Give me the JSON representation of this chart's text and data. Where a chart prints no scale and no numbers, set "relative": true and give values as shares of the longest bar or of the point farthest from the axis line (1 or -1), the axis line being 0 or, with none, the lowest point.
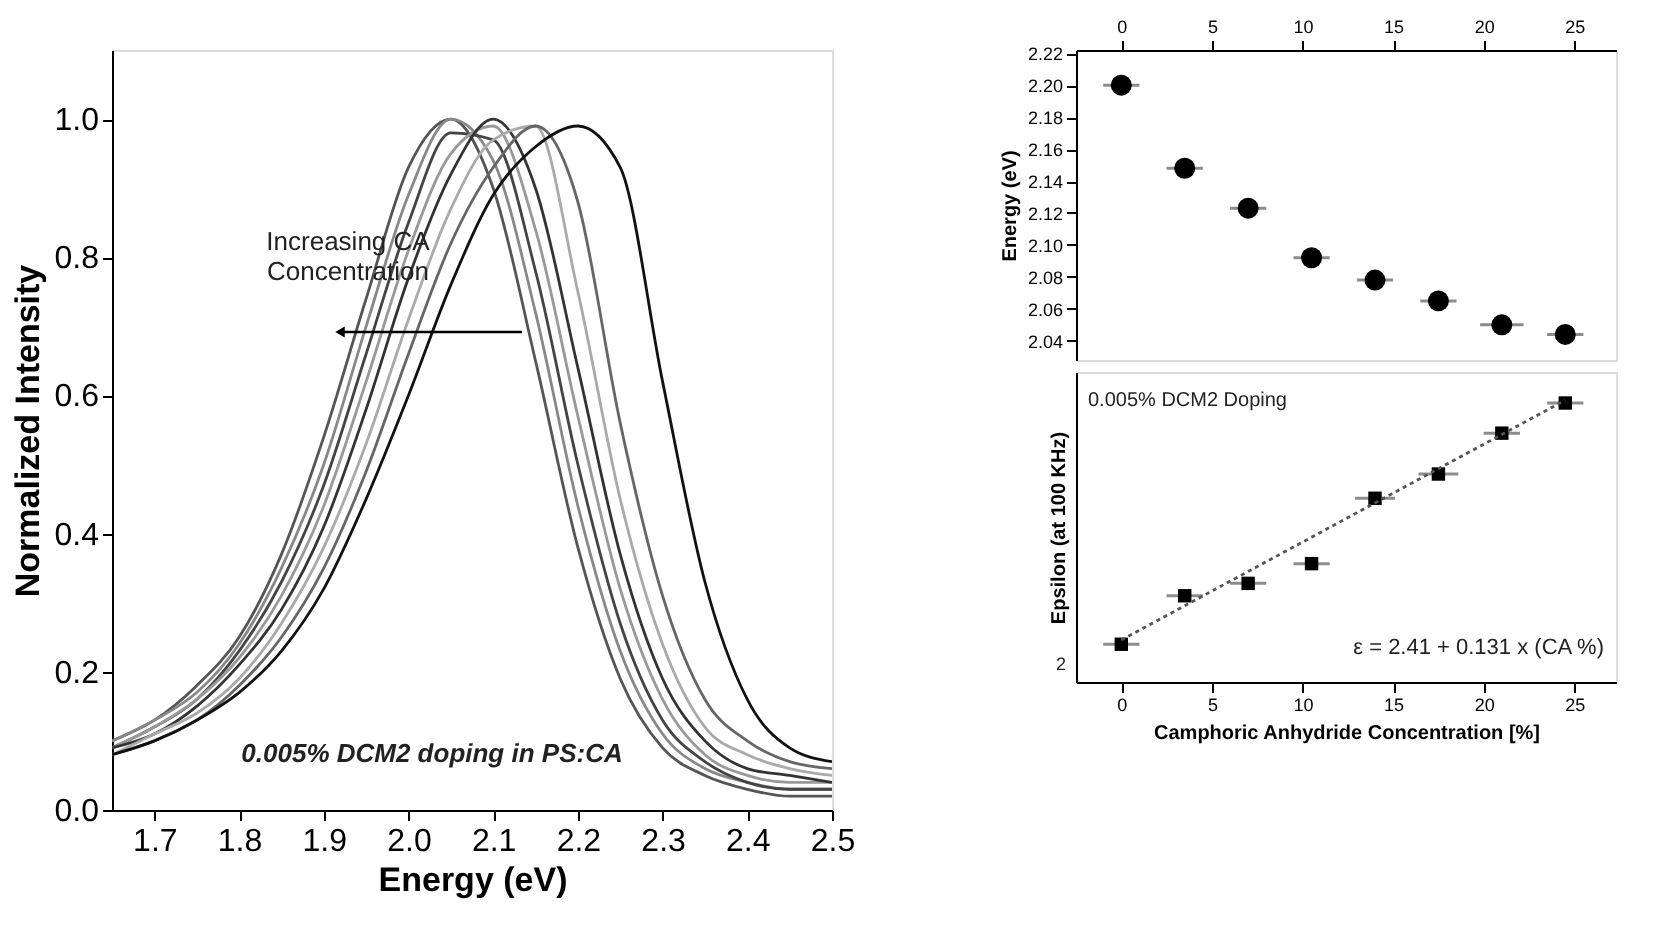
{
  "chart_data": [
    {
      "type": "line",
      "xlabel": "Energy (eV)",
      "ylabel": "Normalized Intensity",
      "x": [
        1.65,
        1.7,
        1.75,
        1.8,
        1.85,
        1.9,
        1.95,
        2.0,
        2.05,
        2.1,
        2.15,
        2.2,
        2.25,
        2.3,
        2.35,
        2.4,
        2.45,
        2.5
      ],
      "xlim": [
        1.65,
        2.5
      ],
      "xticks": [
        1.7,
        1.8,
        1.9,
        {
          "value": 2.0,
          "label": "2.0"
        },
        2.1,
        2.2,
        2.3,
        2.4,
        2.5
      ],
      "ylim": [
        0,
        1.1
      ],
      "yticks": [
        {
          "value": 0,
          "label": "0.0"
        },
        0.2,
        0.4,
        0.6,
        0.8,
        {
          "value": 1,
          "label": "1.0"
        }
      ],
      "series": [
        {
          "color": "#555555",
          "values": [
            0.1,
            0.13,
            0.18,
            0.25,
            0.37,
            0.54,
            0.74,
            0.93,
            1.0,
            0.9,
            0.65,
            0.38,
            0.19,
            0.09,
            0.05,
            0.03,
            0.02,
            0.02
          ]
        },
        {
          "color": "#888888",
          "values": [
            0.1,
            0.13,
            0.17,
            0.24,
            0.35,
            0.5,
            0.7,
            0.89,
            1.0,
            0.94,
            0.72,
            0.44,
            0.23,
            0.11,
            0.06,
            0.04,
            0.03,
            0.03
          ]
        },
        {
          "color": "#444444",
          "values": [
            0.09,
            0.12,
            0.16,
            0.23,
            0.33,
            0.47,
            0.66,
            0.85,
            0.98,
            0.97,
            0.78,
            0.5,
            0.27,
            0.13,
            0.07,
            0.04,
            0.03,
            0.03
          ]
        },
        {
          "color": "#999999",
          "values": [
            0.09,
            0.12,
            0.16,
            0.22,
            0.31,
            0.44,
            0.62,
            0.81,
            0.95,
            0.99,
            0.84,
            0.57,
            0.32,
            0.16,
            0.08,
            0.05,
            0.04,
            0.04
          ]
        },
        {
          "color": "#333333",
          "values": [
            0.09,
            0.11,
            0.15,
            0.21,
            0.29,
            0.41,
            0.58,
            0.77,
            0.92,
            1.0,
            0.9,
            0.64,
            0.37,
            0.19,
            0.1,
            0.06,
            0.05,
            0.04
          ]
        },
        {
          "color": "#aaaaaa",
          "values": [
            0.08,
            0.11,
            0.14,
            0.19,
            0.27,
            0.38,
            0.53,
            0.71,
            0.87,
            0.97,
            0.99,
            0.75,
            0.45,
            0.24,
            0.12,
            0.08,
            0.06,
            0.05
          ]
        },
        {
          "color": "#666666",
          "values": [
            0.08,
            0.1,
            0.13,
            0.18,
            0.25,
            0.35,
            0.49,
            0.66,
            0.82,
            0.93,
            0.99,
            0.88,
            0.56,
            0.31,
            0.16,
            0.1,
            0.07,
            0.06
          ]
        },
        {
          "color": "#111111",
          "values": [
            0.08,
            0.1,
            0.13,
            0.17,
            0.23,
            0.32,
            0.45,
            0.6,
            0.76,
            0.89,
            0.96,
            0.99,
            0.93,
            0.62,
            0.33,
            0.16,
            0.09,
            0.07
          ]
        }
      ],
      "annotations": [
        "Increasing CA Concentration",
        "0.005% DCM2 doping in PS:CA"
      ]
    },
    {
      "type": "scatter",
      "ylabel": "Energy (eV)",
      "marker": "circle",
      "x": [
        0,
        3.5,
        7,
        10.5,
        14,
        17.5,
        21,
        24.5
      ],
      "x2lim": [
        -2.5,
        27.3
      ],
      "x2ticks": [
        0,
        5,
        10,
        15,
        20,
        25
      ],
      "ylim": [
        2.028,
        2.222
      ],
      "yticks": [
        2.04,
        2.06,
        2.08,
        {
          "value": 2.1,
          "label": "2.10"
        },
        2.12,
        2.14,
        2.16,
        2.18,
        {
          "value": 2.2,
          "label": "2.20"
        },
        2.22
      ],
      "series": [
        {
          "color": "#000000",
          "axis": "x2",
          "values": [
            2.2,
            2.148,
            2.123,
            2.092,
            2.078,
            2.065,
            2.05,
            2.044
          ],
          "xerrors": [
            1,
            1,
            1,
            1,
            1,
            1,
            1.2,
            1
          ]
        }
      ]
    },
    {
      "type": "scatter",
      "relative": true,
      "xlabel": "Camphoric Anhydride Concentration [%]",
      "ylabel": "Epsilon (at 100 KHz)",
      "x": [
        0,
        3.5,
        7,
        10.5,
        14,
        17.5,
        21,
        24.5
      ],
      "xlim": [
        -2.5,
        27.3
      ],
      "xticks": [
        0,
        5,
        10,
        15,
        20,
        25
      ],
      "series": [
        {
          "color": "#000000",
          "marker": "square",
          "values": [
            0.134,
            0.306,
            0.35,
            0.42,
            0.652,
            0.738,
            0.883,
            0.99
          ],
          "xerrors": [
            1,
            1,
            1,
            1,
            1.1,
            1.1,
            1,
            1
          ]
        },
        {
          "type": "line",
          "x": [
            0,
            24.5
          ],
          "values": [
            0.149,
            1.0
          ],
          "color": "#555555",
          "line_style": "dotted"
        }
      ],
      "annotations": [
        "0.005% DCM2 Doping",
        "ε = 2.41 + 0.131 x (CA %)",
        "2"
      ]
    }
  ]
}
